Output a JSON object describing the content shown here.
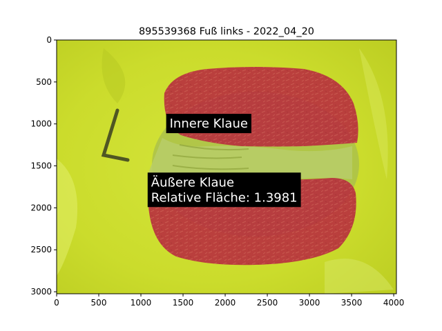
{
  "chart_data": {
    "type": "image",
    "title": "895539368 Fuß links - 2022_04_20",
    "xlabel": "",
    "ylabel": "",
    "xlim": [
      0,
      4032
    ],
    "ylim": [
      3024,
      0
    ],
    "x_ticks": [
      0,
      500,
      1000,
      1500,
      2000,
      2500,
      3000,
      3500,
      4000
    ],
    "y_ticks": [
      0,
      500,
      1000,
      1500,
      2000,
      2500,
      3000
    ],
    "x_tick_labels": [
      "0",
      "500",
      "1000",
      "1500",
      "2000",
      "2500",
      "3000",
      "3500",
      "4000"
    ],
    "y_tick_labels": [
      "0",
      "500",
      "1000",
      "1500",
      "2000",
      "2500",
      "3000"
    ],
    "annotations": [
      {
        "lines": [
          "Innere Klaue"
        ],
        "x": 1300,
        "y": 880
      },
      {
        "lines": [
          "Äußere Klaue",
          "Relative Fläche: 1.3981"
        ],
        "x": 1080,
        "y": 1580
      }
    ],
    "colors": {
      "background": "#ccdf2a",
      "claw_mask": "#b5323f",
      "label_box": "#000000",
      "label_text": "#ffffff"
    }
  }
}
